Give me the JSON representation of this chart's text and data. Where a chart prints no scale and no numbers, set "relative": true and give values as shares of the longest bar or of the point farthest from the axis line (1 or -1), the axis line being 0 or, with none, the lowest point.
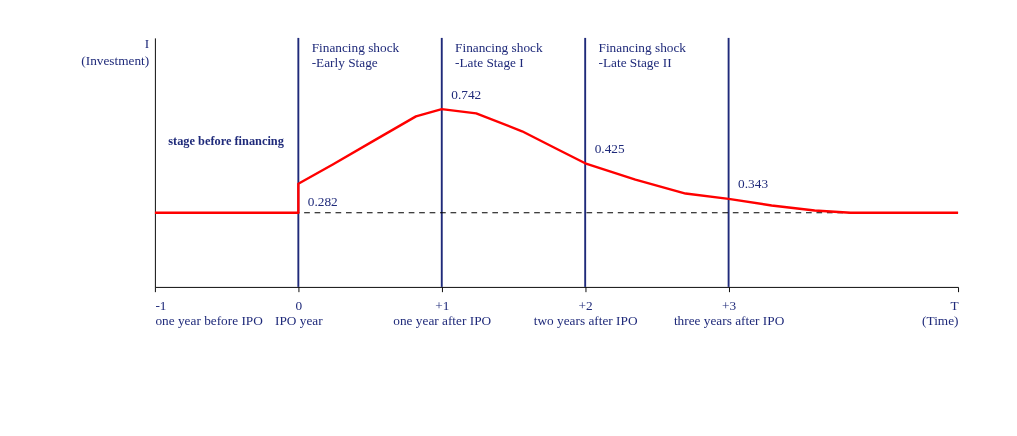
{
  "chart_data": {
    "type": "line",
    "relative": true,
    "ylabel": "I\n(Investment)",
    "x": [
      -1,
      0,
      0,
      0.24,
      0.53,
      0.82,
      1,
      1.24,
      1.56,
      1.81,
      2,
      2.35,
      2.7,
      3,
      3.3,
      3.6,
      3.85,
      4.6
    ],
    "series": [
      {
        "color": "#ff0000",
        "values": [
          0.417,
          0.417,
          0.58,
          0.688,
          0.824,
          0.959,
          1.0,
          0.976,
          0.875,
          0.773,
          0.695,
          0.603,
          0.525,
          0.495,
          0.458,
          0.43,
          0.417,
          0.417
        ]
      }
    ],
    "xlim": [
      -1,
      4.6
    ],
    "xticks": [
      {
        "value": -1,
        "label": "-1\none year before IPO"
      },
      {
        "value": 0,
        "label": "0\nIPO year"
      },
      {
        "value": 1,
        "label": "+1\none year after IPO"
      },
      {
        "value": 2,
        "label": "+2\ntwo years after IPO"
      },
      {
        "value": 3,
        "label": "+3\nthree years after IPO"
      },
      {
        "value": 4.6,
        "label": "T\n(Time)"
      }
    ],
    "tick_labels": "x",
    "grid": false,
    "line_style": "solid",
    "marker": "none",
    "ref_lines": [
      {
        "axis": "x",
        "value": 0,
        "label": "Financing shock\n-Early Stage",
        "color": "#1f2a7a"
      },
      {
        "axis": "x",
        "value": 1,
        "label": "Financing shock\n-Late Stage I",
        "color": "#1f2a7a"
      },
      {
        "axis": "x",
        "value": 2,
        "label": "Financing shock\n-Late Stage II",
        "color": "#1f2a7a"
      },
      {
        "axis": "x",
        "value": 3,
        "color": "#1f2a7a"
      },
      {
        "axis": "y",
        "value": 0.417,
        "color": "#000000",
        "line_style": "dashed"
      }
    ],
    "annotations": [
      "stage before financing",
      {
        "text": "0.282",
        "x": 0,
        "y": 0.58
      },
      {
        "text": "0.742",
        "x": 1,
        "y": 1.0
      },
      {
        "text": "0.425",
        "x": 2,
        "y": 0.695
      },
      {
        "text": "0.343",
        "x": 3,
        "y": 0.495
      }
    ]
  }
}
